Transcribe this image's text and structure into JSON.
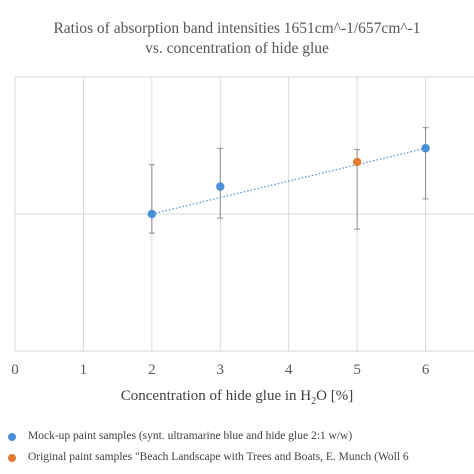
{
  "chart_data": {
    "type": "scatter",
    "title": "Ratios of absorption band intensities 1651cm^-1/657cm^-1",
    "subtitle": "vs. concentration of hide glue",
    "xlabel_prefix": "Concentration of hide glue in H",
    "xlabel_sub": "2",
    "xlabel_suffix": "O  [%]",
    "xlim": [
      0,
      7
    ],
    "xticks": [
      "0",
      "1",
      "2",
      "3",
      "4",
      "5",
      "6"
    ],
    "ylim": [
      0,
      2
    ],
    "grid": true,
    "legend_position": "bottom",
    "series": [
      {
        "name": "Mock-up paint samples (synt. ultramarine blue and hide glue 2:1 w/w)",
        "color": "#4a90d9",
        "points": [
          {
            "x": 2,
            "y": 1.0,
            "err_low": 0.86,
            "err_high": 1.36
          },
          {
            "x": 3,
            "y": 1.2,
            "err_low": 0.97,
            "err_high": 1.48
          },
          {
            "x": 6,
            "y": 1.48,
            "err_low": 1.11,
            "err_high": 1.63
          }
        ],
        "trendline": {
          "x": [
            2,
            6
          ],
          "y": [
            1.0,
            1.48
          ],
          "color": "#4a90d9",
          "style": "dotted"
        }
      },
      {
        "name": "Original paint samples \"Beach Landscape with Trees and Boats, E. Munch (Woll 6",
        "color": "#e07b30",
        "points": [
          {
            "x": 5,
            "y": 1.38,
            "err_low": 0.89,
            "err_high": 1.47
          }
        ]
      }
    ]
  }
}
